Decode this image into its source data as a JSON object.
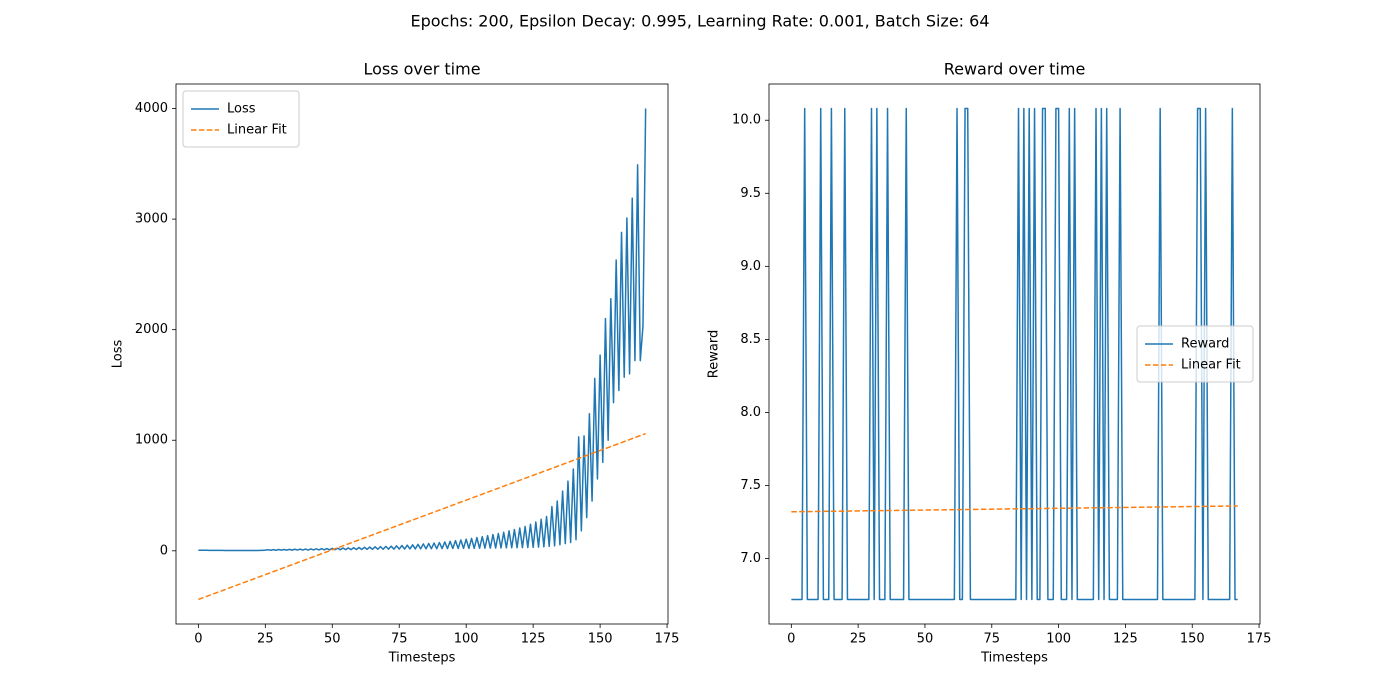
{
  "suptitle": "Epochs: 200, Epsilon Decay: 0.995, Learning Rate: 0.001, Batch Size: 64",
  "chart_data": [
    {
      "type": "line",
      "title": "Loss over time",
      "xlabel": "Timesteps",
      "ylabel": "Loss",
      "legend": "upper left",
      "x": [
        0,
        1,
        2,
        3,
        4,
        5,
        6,
        7,
        8,
        9,
        10,
        11,
        12,
        13,
        14,
        15,
        16,
        17,
        18,
        19,
        20,
        21,
        22,
        23,
        24,
        25,
        26,
        27,
        28,
        29,
        30,
        31,
        32,
        33,
        34,
        35,
        36,
        37,
        38,
        39,
        40,
        41,
        42,
        43,
        44,
        45,
        46,
        47,
        48,
        49,
        50,
        51,
        52,
        53,
        54,
        55,
        56,
        57,
        58,
        59,
        60,
        61,
        62,
        63,
        64,
        65,
        66,
        67,
        68,
        69,
        70,
        71,
        72,
        73,
        74,
        75,
        76,
        77,
        78,
        79,
        80,
        81,
        82,
        83,
        84,
        85,
        86,
        87,
        88,
        89,
        90,
        91,
        92,
        93,
        94,
        95,
        96,
        97,
        98,
        99,
        100,
        101,
        102,
        103,
        104,
        105,
        106,
        107,
        108,
        109,
        110,
        111,
        112,
        113,
        114,
        115,
        116,
        117,
        118,
        119,
        120,
        121,
        122,
        123,
        124,
        125,
        126,
        127,
        128,
        129,
        130,
        131,
        132,
        133,
        134,
        135,
        136,
        137,
        138,
        139,
        140,
        141,
        142,
        143,
        144,
        145,
        146,
        147,
        148,
        149,
        150,
        151,
        152,
        153,
        154,
        155,
        156,
        157,
        158,
        159,
        160,
        161,
        162,
        163,
        164,
        165,
        166,
        167
      ],
      "xlim": [
        -8.35,
        175.35
      ],
      "xticks": [
        0,
        25,
        50,
        75,
        100,
        125,
        150,
        175
      ],
      "ylim": [
        -662,
        4222
      ],
      "yticks": [
        0,
        1000,
        2000,
        3000,
        4000
      ],
      "series": [
        {
          "name": "Loss",
          "color": "#1f77b4",
          "dash": "solid",
          "values": [
            5,
            5,
            5,
            5,
            4,
            4,
            4,
            4,
            4,
            4,
            3,
            3,
            3,
            3,
            3,
            3,
            3,
            3,
            3,
            3,
            3,
            3,
            3,
            4,
            4,
            6,
            10,
            5,
            11,
            5,
            12,
            6,
            12,
            6,
            13,
            6,
            14,
            7,
            15,
            7,
            16,
            7,
            17,
            8,
            18,
            8,
            19,
            9,
            20,
            9,
            22,
            10,
            23,
            10,
            25,
            11,
            26,
            11,
            28,
            12,
            30,
            12,
            32,
            13,
            34,
            13,
            36,
            14,
            38,
            14,
            40,
            15,
            42,
            15,
            45,
            16,
            48,
            16,
            51,
            17,
            54,
            17,
            58,
            18,
            62,
            18,
            66,
            19,
            70,
            19,
            75,
            20,
            80,
            20,
            86,
            21,
            92,
            21,
            98,
            22,
            105,
            22,
            112,
            23,
            120,
            23,
            128,
            24,
            137,
            24,
            147,
            25,
            157,
            26,
            168,
            26,
            180,
            27,
            193,
            28,
            206,
            29,
            220,
            30,
            240,
            31,
            260,
            33,
            285,
            36,
            310,
            40,
            400,
            45,
            450,
            55,
            540,
            65,
            630,
            75,
            740,
            100,
            1030,
            180,
            1040,
            300,
            1240,
            450,
            1560,
            650,
            1770,
            800,
            2100,
            1000,
            2280,
            1340,
            2630,
            1450,
            2880,
            1570,
            3010,
            1600,
            3190,
            1720,
            3490,
            1720,
            2030,
            4000
          ]
        },
        {
          "name": "Linear Fit",
          "color": "#ff7f0e",
          "dash": "dashed",
          "x": [
            0,
            167
          ],
          "values": [
            -440,
            1060
          ]
        }
      ]
    },
    {
      "type": "line",
      "title": "Reward over time",
      "xlabel": "Timesteps",
      "ylabel": "Reward",
      "legend": "center right",
      "x": [
        0,
        1,
        2,
        3,
        4,
        5,
        6,
        7,
        8,
        9,
        10,
        11,
        12,
        13,
        14,
        15,
        16,
        17,
        18,
        19,
        20,
        21,
        22,
        23,
        24,
        25,
        26,
        27,
        28,
        29,
        30,
        31,
        32,
        33,
        34,
        35,
        36,
        37,
        38,
        39,
        40,
        41,
        42,
        43,
        44,
        45,
        46,
        47,
        48,
        49,
        50,
        51,
        52,
        53,
        54,
        55,
        56,
        57,
        58,
        59,
        60,
        61,
        62,
        63,
        64,
        65,
        66,
        67,
        68,
        69,
        70,
        71,
        72,
        73,
        74,
        75,
        76,
        77,
        78,
        79,
        80,
        81,
        82,
        83,
        84,
        85,
        86,
        87,
        88,
        89,
        90,
        91,
        92,
        93,
        94,
        95,
        96,
        97,
        98,
        99,
        100,
        101,
        102,
        103,
        104,
        105,
        106,
        107,
        108,
        109,
        110,
        111,
        112,
        113,
        114,
        115,
        116,
        117,
        118,
        119,
        120,
        121,
        122,
        123,
        124,
        125,
        126,
        127,
        128,
        129,
        130,
        131,
        132,
        133,
        134,
        135,
        136,
        137,
        138,
        139,
        140,
        141,
        142,
        143,
        144,
        145,
        146,
        147,
        148,
        149,
        150,
        151,
        152,
        153,
        154,
        155,
        156,
        157,
        158,
        159,
        160,
        161,
        162,
        163,
        164,
        165,
        166,
        167
      ],
      "xlim": [
        -8.35,
        175.35
      ],
      "xticks": [
        0,
        25,
        50,
        75,
        100,
        125,
        150,
        175
      ],
      "ylim": [
        6.552,
        10.248
      ],
      "yticks": [
        {
          "value": 7,
          "label": "7.0"
        },
        7.5,
        {
          "value": 8,
          "label": "8.0"
        },
        8.5,
        {
          "value": 9,
          "label": "9.0"
        },
        9.5,
        {
          "value": 10,
          "label": "10.0"
        }
      ],
      "series": [
        {
          "name": "Reward",
          "color": "#1f77b4",
          "dash": "solid",
          "values": [
            6.72,
            6.72,
            6.72,
            6.72,
            6.72,
            10.08,
            6.72,
            6.72,
            6.72,
            6.72,
            6.72,
            10.08,
            6.72,
            6.72,
            6.72,
            10.08,
            6.72,
            6.72,
            6.72,
            6.72,
            10.08,
            6.72,
            6.72,
            6.72,
            6.72,
            6.72,
            6.72,
            6.72,
            6.72,
            6.72,
            10.08,
            6.72,
            10.08,
            6.72,
            6.72,
            6.72,
            10.08,
            6.72,
            6.72,
            6.72,
            6.72,
            6.72,
            6.72,
            10.08,
            6.72,
            6.72,
            6.72,
            6.72,
            6.72,
            6.72,
            6.72,
            6.72,
            6.72,
            6.72,
            6.72,
            6.72,
            6.72,
            6.72,
            6.72,
            6.72,
            6.72,
            6.72,
            10.08,
            6.72,
            6.72,
            10.08,
            10.08,
            6.72,
            6.72,
            6.72,
            6.72,
            6.72,
            6.72,
            6.72,
            6.72,
            6.72,
            6.72,
            6.72,
            6.72,
            6.72,
            6.72,
            6.72,
            6.72,
            6.72,
            6.72,
            10.08,
            6.72,
            10.08,
            6.72,
            10.08,
            6.72,
            10.08,
            6.72,
            6.72,
            10.08,
            10.08,
            6.72,
            6.72,
            6.72,
            10.08,
            10.08,
            6.72,
            6.72,
            6.72,
            10.08,
            6.72,
            10.08,
            6.72,
            6.72,
            6.72,
            6.72,
            6.72,
            6.72,
            6.72,
            10.08,
            6.72,
            10.08,
            6.72,
            10.08,
            6.72,
            6.72,
            6.72,
            6.72,
            10.08,
            6.72,
            6.72,
            6.72,
            6.72,
            6.72,
            6.72,
            6.72,
            6.72,
            6.72,
            6.72,
            6.72,
            6.72,
            6.72,
            6.72,
            10.08,
            6.72,
            6.72,
            6.72,
            6.72,
            6.72,
            6.72,
            6.72,
            6.72,
            6.72,
            6.72,
            6.72,
            6.72,
            6.72,
            10.08,
            10.08,
            6.72,
            10.08,
            6.72,
            6.72,
            6.72,
            6.72,
            6.72,
            6.72,
            6.72,
            6.72,
            6.72,
            10.08,
            6.72,
            6.72
          ]
        },
        {
          "name": "Linear Fit",
          "color": "#ff7f0e",
          "dash": "dashed",
          "x": [
            0,
            167
          ],
          "values": [
            7.32,
            7.36
          ]
        }
      ]
    }
  ]
}
